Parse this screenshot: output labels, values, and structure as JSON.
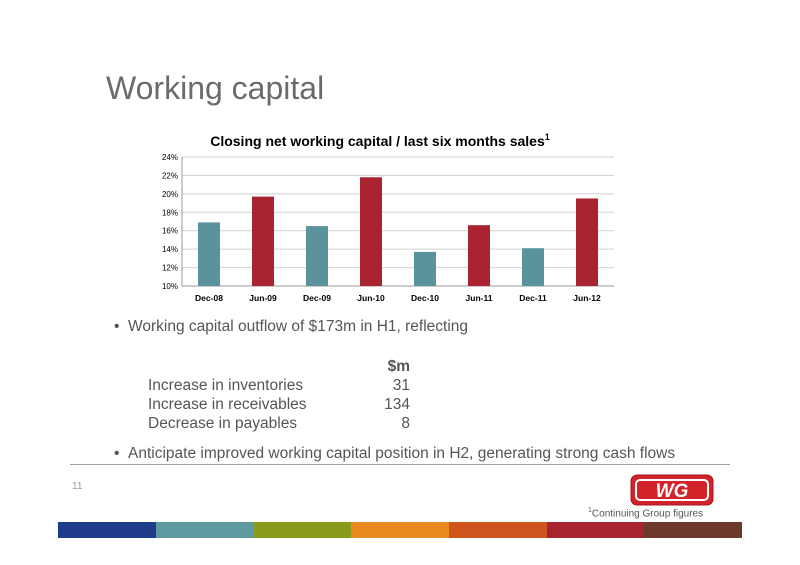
{
  "slide": {
    "title": "Working capital",
    "page_number": "11",
    "footnote_marker": "1",
    "footnote": "Continuing Group figures",
    "logo_text": "WG"
  },
  "bullets": [
    {
      "marker": "•",
      "text": "Working capital outflow of $173m in H1, reflecting"
    },
    {
      "marker": "•",
      "text": "Anticipate improved working capital position in H2, generating strong cash flows"
    }
  ],
  "table": {
    "header": "$m",
    "rows": [
      {
        "label": "Increase in inventories",
        "value": "31"
      },
      {
        "label": "Increase in receivables",
        "value": "134"
      },
      {
        "label": "Decrease in payables",
        "value": "8"
      }
    ]
  },
  "colors": {
    "teal": "#5a939c",
    "red": "#a8232f",
    "logo_red": "#d2232a",
    "stripe": [
      "#1f3d8c",
      "#5c9aa0",
      "#8a9a1a",
      "#e88a1e",
      "#d0541e",
      "#a8232f",
      "#6b3a2a"
    ]
  },
  "chart_data": {
    "type": "bar",
    "title": "Closing net working capital / last six months sales",
    "title_superscript": "1",
    "categories": [
      "Dec-08",
      "Jun-09",
      "Dec-09",
      "Jun-10",
      "Dec-10",
      "Jun-11",
      "Dec-11",
      "Jun-12"
    ],
    "values": [
      16.9,
      19.7,
      16.5,
      21.8,
      13.7,
      16.6,
      14.1,
      19.5
    ],
    "bar_colors": [
      "teal",
      "red",
      "teal",
      "red",
      "teal",
      "red",
      "teal",
      "red"
    ],
    "ylim": [
      10,
      24
    ],
    "yticks": [
      10,
      12,
      14,
      16,
      18,
      20,
      22,
      24
    ],
    "ytick_labels": [
      "10%",
      "12%",
      "14%",
      "16%",
      "18%",
      "20%",
      "22%",
      "24%"
    ],
    "grid": true,
    "legend": "none"
  }
}
